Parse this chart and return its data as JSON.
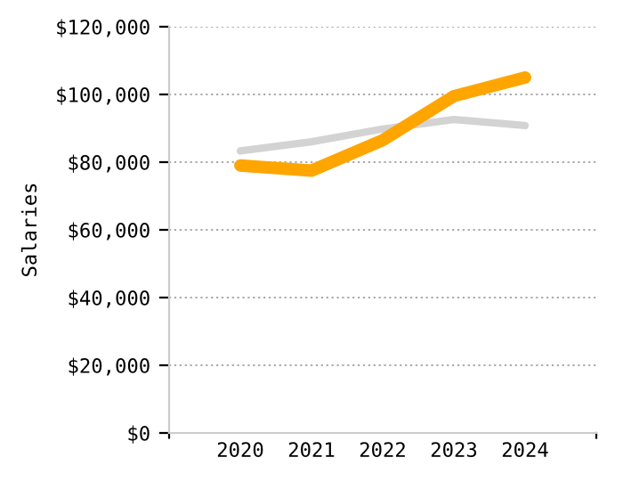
{
  "chart_data": {
    "type": "line",
    "ylabel": "Salaries",
    "categories": [
      "2020",
      "2021",
      "2022",
      "2023",
      "2024"
    ],
    "series": [
      {
        "color": "#d3d3d3",
        "values": [
          83300,
          86000,
          89800,
          92600,
          90800
        ]
      },
      {
        "color": "#ffa500",
        "values": [
          79000,
          77500,
          86500,
          99500,
          105000
        ]
      }
    ],
    "ylim": [
      0,
      120000
    ],
    "yticks": [
      {
        "value": 0,
        "label": "$0"
      },
      {
        "value": 20000,
        "label": "$20,000"
      },
      {
        "value": 40000,
        "label": "$40,000"
      },
      {
        "value": 60000,
        "label": "$60,000"
      },
      {
        "value": 80000,
        "label": "$80,000"
      },
      {
        "value": 100000,
        "label": "$100,000"
      },
      {
        "value": 120000,
        "label": "$120,000"
      }
    ],
    "grid": "y",
    "legend": false,
    "marker": "none",
    "line_style": "solid"
  }
}
